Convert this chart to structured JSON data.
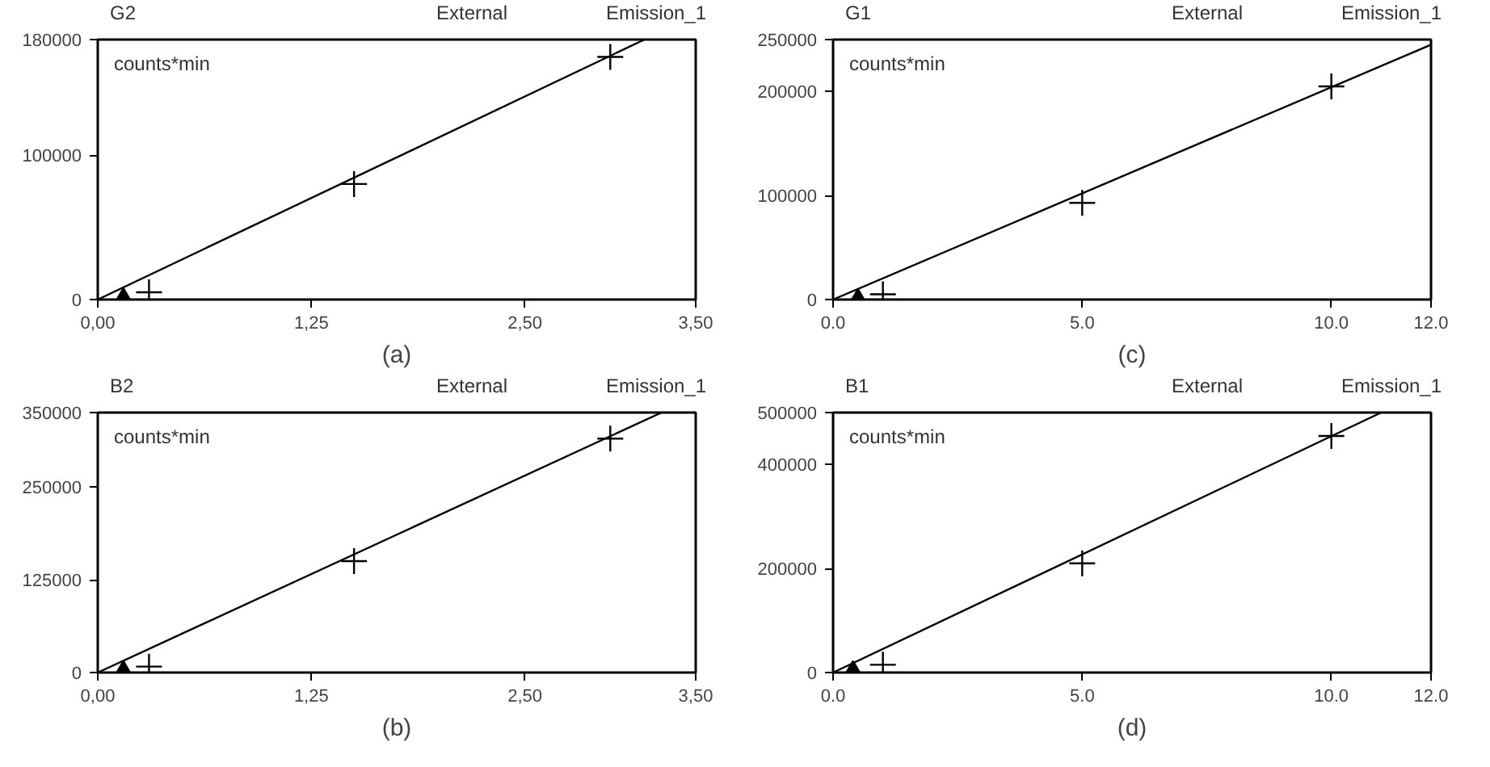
{
  "chart_data": [
    {
      "type": "scatter",
      "title": "G2",
      "ylabel": "counts*min",
      "xlabel": "(a)",
      "annotations": [
        "External",
        "Emission_1"
      ],
      "xlim": [
        0,
        3.5
      ],
      "xticks": [
        {
          "value": 0,
          "label": "0,00"
        },
        {
          "value": 1.25,
          "label": "1,25"
        },
        {
          "value": 2.5,
          "label": "2,50"
        },
        {
          "value": 3.5,
          "label": "3,50"
        }
      ],
      "ylim": [
        0,
        180000
      ],
      "yticks": [
        0,
        100000,
        180000
      ],
      "grid": false,
      "series": [
        {
          "type": "line",
          "color": "#000000",
          "x": [
            0,
            3.2
          ],
          "values": [
            0,
            180000
          ],
          "line_style": "solid",
          "marker": "none"
        },
        {
          "type": "scatter",
          "color": "#000000",
          "x": [
            0.3,
            1.5,
            3.0
          ],
          "values": [
            5000,
            80000,
            168000
          ],
          "marker": "cross"
        },
        {
          "type": "scatter",
          "color": "#000000",
          "x": [
            0.15
          ],
          "values": [
            2000
          ],
          "marker": "triangle"
        }
      ]
    },
    {
      "type": "scatter",
      "title": "G1",
      "ylabel": "counts*min",
      "xlabel": "(c)",
      "annotations": [
        "External",
        "Emission_1"
      ],
      "xlim": [
        0,
        12
      ],
      "xticks": [
        {
          "value": 0,
          "label": "0.0"
        },
        {
          "value": 5,
          "label": "5.0"
        },
        {
          "value": 10,
          "label": "10.0"
        },
        {
          "value": 12,
          "label": "12.0"
        }
      ],
      "ylim": [
        0,
        250000
      ],
      "yticks": [
        0,
        100000,
        200000,
        250000
      ],
      "grid": false,
      "series": [
        {
          "type": "line",
          "color": "#000000",
          "x": [
            0,
            12
          ],
          "values": [
            0,
            245000
          ],
          "line_style": "solid",
          "marker": "none"
        },
        {
          "type": "scatter",
          "color": "#000000",
          "x": [
            1,
            5,
            10
          ],
          "values": [
            5000,
            93000,
            205000
          ],
          "marker": "cross"
        },
        {
          "type": "scatter",
          "color": "#000000",
          "x": [
            0.5
          ],
          "values": [
            2000
          ],
          "marker": "triangle"
        }
      ]
    },
    {
      "type": "scatter",
      "title": "B2",
      "ylabel": "counts*min",
      "xlabel": "(b)",
      "annotations": [
        "External",
        "Emission_1"
      ],
      "xlim": [
        0,
        3.5
      ],
      "xticks": [
        {
          "value": 0,
          "label": "0,00"
        },
        {
          "value": 1.25,
          "label": "1,25"
        },
        {
          "value": 2.5,
          "label": "2,50"
        },
        {
          "value": 3.5,
          "label": "3,50"
        }
      ],
      "ylim": [
        0,
        350000
      ],
      "yticks": [
        0,
        125000,
        250000,
        350000
      ],
      "grid": false,
      "series": [
        {
          "type": "line",
          "color": "#000000",
          "x": [
            0,
            3.3
          ],
          "values": [
            0,
            350000
          ],
          "line_style": "solid",
          "marker": "none"
        },
        {
          "type": "scatter",
          "color": "#000000",
          "x": [
            0.3,
            1.5,
            3.0
          ],
          "values": [
            8000,
            150000,
            315000
          ],
          "marker": "cross"
        },
        {
          "type": "scatter",
          "color": "#000000",
          "x": [
            0.15
          ],
          "values": [
            4000
          ],
          "marker": "triangle"
        }
      ]
    },
    {
      "type": "scatter",
      "title": "B1",
      "ylabel": "counts*min",
      "xlabel": "(d)",
      "annotations": [
        "External",
        "Emission_1"
      ],
      "xlim": [
        0,
        12
      ],
      "xticks": [
        {
          "value": 0,
          "label": "0.0"
        },
        {
          "value": 5,
          "label": "5.0"
        },
        {
          "value": 10,
          "label": "10.0"
        },
        {
          "value": 12,
          "label": "12.0"
        }
      ],
      "ylim": [
        0,
        500000
      ],
      "yticks": [
        0,
        200000,
        400000,
        500000
      ],
      "grid": false,
      "series": [
        {
          "type": "line",
          "color": "#000000",
          "x": [
            0,
            11
          ],
          "values": [
            0,
            500000
          ],
          "line_style": "solid",
          "marker": "none"
        },
        {
          "type": "scatter",
          "color": "#000000",
          "x": [
            1,
            5,
            10
          ],
          "values": [
            15000,
            210000,
            455000
          ],
          "marker": "cross"
        },
        {
          "type": "scatter",
          "color": "#000000",
          "x": [
            0.4
          ],
          "values": [
            6000
          ],
          "marker": "triangle"
        }
      ]
    }
  ]
}
